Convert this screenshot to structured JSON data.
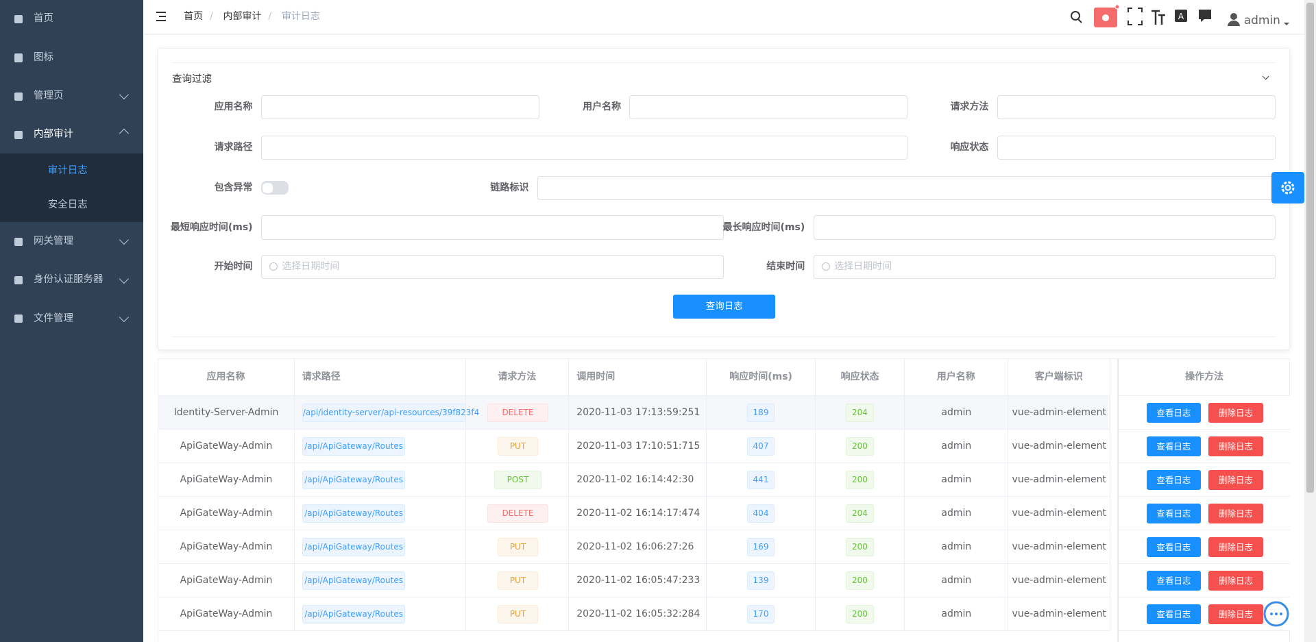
{
  "sidebar": {
    "menu": [
      {
        "label": "首页"
      },
      {
        "label": "图标"
      },
      {
        "label": "管理页"
      },
      {
        "label": "内部审计",
        "children": [
          "审计日志",
          "安全日志"
        ]
      },
      {
        "label": "网关管理"
      },
      {
        "label": "身份认证服务器"
      },
      {
        "label": "文件管理"
      }
    ]
  },
  "header": {
    "breadcrumb": [
      "首页",
      "内部审计",
      "审计日志"
    ],
    "user": "admin"
  },
  "filter": {
    "title": "查询过滤",
    "fields": [
      {
        "label": "应用名称"
      },
      {
        "label": "用户名称"
      },
      {
        "label": "请求方法"
      },
      {
        "label": "请求路径"
      },
      {
        "label": "响应状态"
      },
      {
        "label": "包含异常"
      },
      {
        "label": "链路标识"
      },
      {
        "label": "最短响应时间(ms)"
      },
      {
        "label": "最长响应时间(ms)"
      },
      {
        "label": "开始时间",
        "placeholder": "选择日期时间"
      },
      {
        "label": "结束时间",
        "placeholder": "选择日期时间"
      }
    ],
    "button": "查询日志"
  },
  "table": {
    "columns": [
      "应用名称",
      "请求路径",
      "请求方法",
      "调用时间",
      "响应时间(ms)",
      "响应状态",
      "用户名称",
      "客户端标识",
      "操作方法"
    ],
    "actions": [
      "查看日志",
      "删除日志"
    ],
    "rows": [
      {
        "app": "Identity-Server-Admin",
        "path": "/api/identity-server/api-resources/39f823f4",
        "method": "DELETE",
        "method_type": "danger",
        "time": "2020-11-03 17:13:59:251",
        "duration": 189,
        "status": 204,
        "user": "admin",
        "client": "vue-admin-element"
      },
      {
        "app": "ApiGateWay-Admin",
        "path": "/api/ApiGateway/Routes",
        "method": "PUT",
        "method_type": "warning",
        "time": "2020-11-03 17:10:51:715",
        "duration": 407,
        "status": 200,
        "user": "admin",
        "client": "vue-admin-element"
      },
      {
        "app": "ApiGateWay-Admin",
        "path": "/api/ApiGateway/Routes",
        "method": "POST",
        "method_type": "success",
        "time": "2020-11-02 16:14:42:30",
        "duration": 441,
        "status": 200,
        "user": "admin",
        "client": "vue-admin-element"
      },
      {
        "app": "ApiGateWay-Admin",
        "path": "/api/ApiGateway/Routes",
        "method": "DELETE",
        "method_type": "danger",
        "time": "2020-11-02 16:14:17:474",
        "duration": 404,
        "status": 204,
        "user": "admin",
        "client": "vue-admin-element"
      },
      {
        "app": "ApiGateWay-Admin",
        "path": "/api/ApiGateway/Routes",
        "method": "PUT",
        "method_type": "warning",
        "time": "2020-11-02 16:06:27:26",
        "duration": 169,
        "status": 200,
        "user": "admin",
        "client": "vue-admin-element"
      },
      {
        "app": "ApiGateWay-Admin",
        "path": "/api/ApiGateway/Routes",
        "method": "PUT",
        "method_type": "warning",
        "time": "2020-11-02 16:05:47:233",
        "duration": 139,
        "status": 200,
        "user": "admin",
        "client": "vue-admin-element"
      },
      {
        "app": "ApiGateWay-Admin",
        "path": "/api/ApiGateway/Routes",
        "method": "PUT",
        "method_type": "warning",
        "time": "2020-11-02 16:05:32:284",
        "duration": 170,
        "status": 200,
        "user": "admin",
        "client": "vue-admin-element"
      }
    ]
  }
}
